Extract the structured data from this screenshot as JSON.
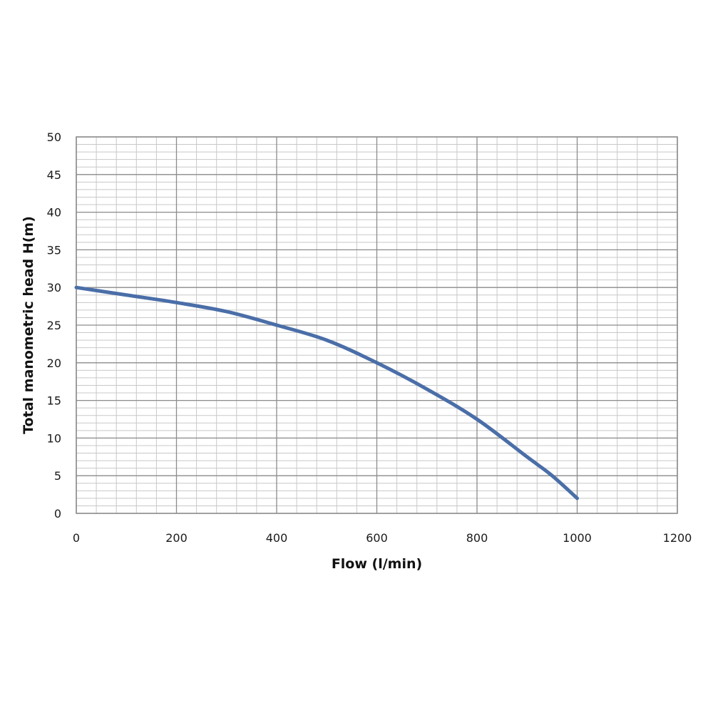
{
  "chart_data": {
    "type": "line",
    "title": "",
    "xlabel": "Flow (l/min)",
    "ylabel": "Total manometric head H(m)",
    "xlim": [
      0,
      1200
    ],
    "ylim": [
      0,
      50
    ],
    "x_ticks": [
      "0",
      "200",
      "400",
      "600",
      "800",
      "1000",
      "1200"
    ],
    "y_ticks": [
      "0",
      "5",
      "10",
      "15",
      "20",
      "25",
      "30",
      "35",
      "40",
      "45",
      "50"
    ],
    "x_minor_step": 40,
    "y_minor_step": 1,
    "grid": true,
    "legend": "none",
    "series": [
      {
        "x": [
          0,
          100,
          200,
          300,
          400,
          500,
          600,
          700,
          800,
          900,
          950,
          1000
        ],
        "y": [
          30,
          29,
          28,
          26.8,
          25,
          23,
          20,
          16.5,
          12.5,
          7.5,
          5,
          2
        ],
        "color": "#4a6ea8"
      }
    ]
  }
}
